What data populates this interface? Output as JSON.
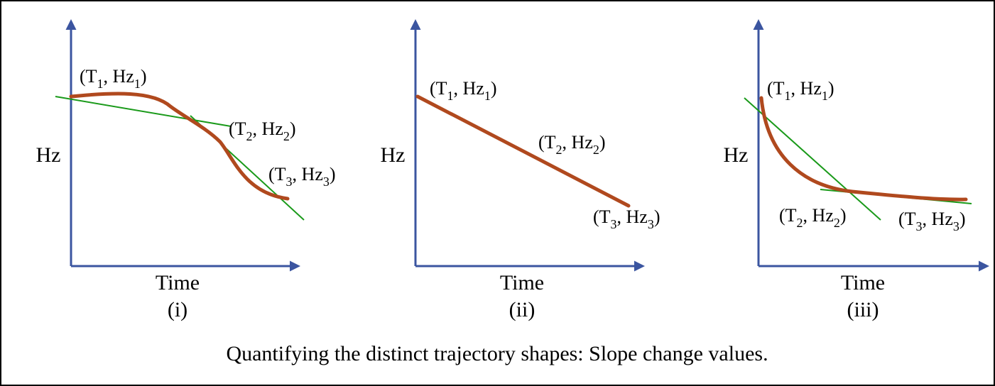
{
  "panels": [
    {
      "y_label": "Hz",
      "x_label": "Time",
      "numeral": "(i)",
      "points": [
        [
          {
            "text": "(T"
          },
          {
            "text": "1",
            "sub": true
          },
          {
            "text": ", Hz"
          },
          {
            "text": "1",
            "sub": true
          },
          {
            "text": ")"
          }
        ],
        [
          {
            "text": "(T"
          },
          {
            "text": "2",
            "sub": true
          },
          {
            "text": ", Hz"
          },
          {
            "text": "2",
            "sub": true
          },
          {
            "text": ")"
          }
        ],
        [
          {
            "text": "(T"
          },
          {
            "text": "3",
            "sub": true
          },
          {
            "text": ", Hz"
          },
          {
            "text": "3",
            "sub": true
          },
          {
            "text": ")"
          }
        ]
      ]
    },
    {
      "y_label": "Hz",
      "x_label": "Time",
      "numeral": "(ii)",
      "points": [
        [
          {
            "text": "(T"
          },
          {
            "text": "1",
            "sub": true
          },
          {
            "text": ", Hz"
          },
          {
            "text": "1",
            "sub": true
          },
          {
            "text": ")"
          }
        ],
        [
          {
            "text": "(T"
          },
          {
            "text": "2",
            "sub": true
          },
          {
            "text": ", Hz"
          },
          {
            "text": "2",
            "sub": true
          },
          {
            "text": ")"
          }
        ],
        [
          {
            "text": "(T"
          },
          {
            "text": "3",
            "sub": true
          },
          {
            "text": ", Hz"
          },
          {
            "text": "3",
            "sub": true
          },
          {
            "text": ")"
          }
        ]
      ]
    },
    {
      "y_label": "Hz",
      "x_label": "Time",
      "numeral": "(iii)",
      "points": [
        [
          {
            "text": "(T"
          },
          {
            "text": "1",
            "sub": true
          },
          {
            "text": ", Hz"
          },
          {
            "text": "1",
            "sub": true
          },
          {
            "text": ")"
          }
        ],
        [
          {
            "text": "(T"
          },
          {
            "text": "2",
            "sub": true
          },
          {
            "text": ", Hz"
          },
          {
            "text": "2",
            "sub": true
          },
          {
            "text": ")"
          }
        ],
        [
          {
            "text": "(T"
          },
          {
            "text": "3",
            "sub": true
          },
          {
            "text": ", Hz"
          },
          {
            "text": "3",
            "sub": true
          },
          {
            "text": ")"
          }
        ]
      ]
    }
  ],
  "caption": "Quantifying the distinct trajectory shapes: Slope change values."
}
